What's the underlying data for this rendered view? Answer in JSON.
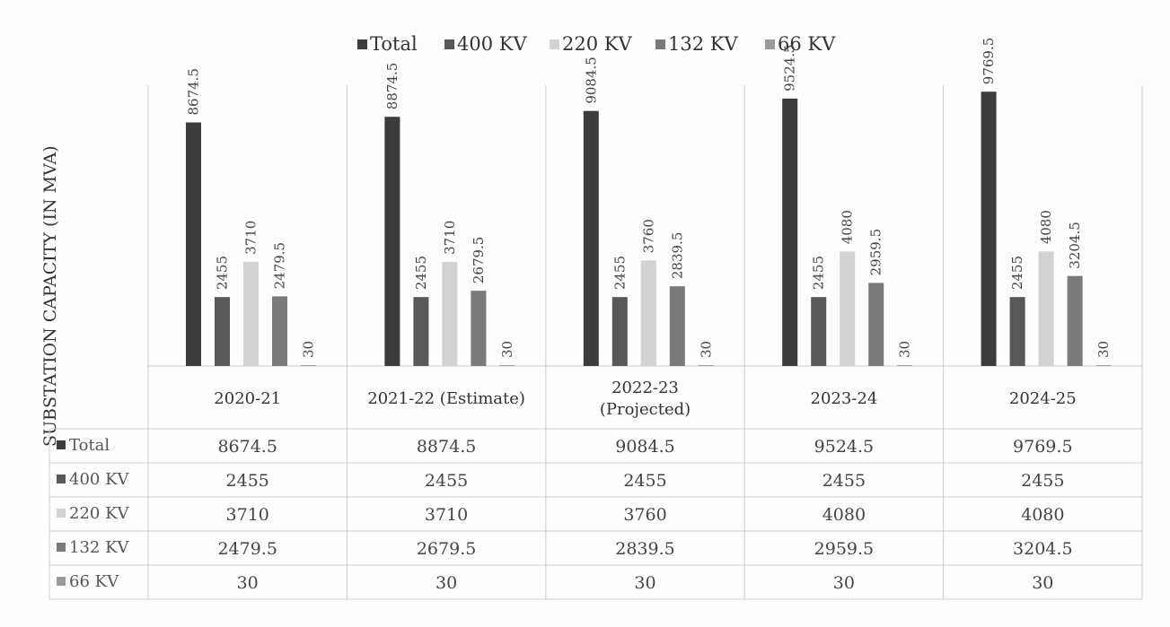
{
  "chart_data": {
    "type": "bar",
    "ylabel": "SUBSTATION CAPACITY (IN MVA)",
    "legend_position": "top",
    "categories": [
      "2020-21",
      "2021-22 (Estimate)",
      "2022-23 (Projected)",
      "2023-24",
      "2024-25"
    ],
    "category_lines": [
      [
        "2020-21"
      ],
      [
        "2021-22 (Estimate)"
      ],
      [
        "2022-23",
        "(Projected)"
      ],
      [
        "2023-24"
      ],
      [
        "2024-25"
      ]
    ],
    "series": [
      {
        "name": "Total",
        "color": "#3c3c3c",
        "values": [
          8674.5,
          8874.5,
          9084.5,
          9524.5,
          9769.5
        ]
      },
      {
        "name": "400 KV",
        "color": "#585858",
        "values": [
          2455,
          2455,
          2455,
          2455,
          2455
        ]
      },
      {
        "name": "220 KV",
        "color": "#d2d2d2",
        "values": [
          3710,
          3710,
          3760,
          4080,
          4080
        ]
      },
      {
        "name": "132 KV",
        "color": "#7a7a7a",
        "values": [
          2479.5,
          2679.5,
          2839.5,
          2959.5,
          3204.5
        ]
      },
      {
        "name": "66 KV",
        "color": "#9a9a9a",
        "values": [
          30,
          30,
          30,
          30,
          30
        ]
      }
    ],
    "data_table": true,
    "grid": false
  }
}
